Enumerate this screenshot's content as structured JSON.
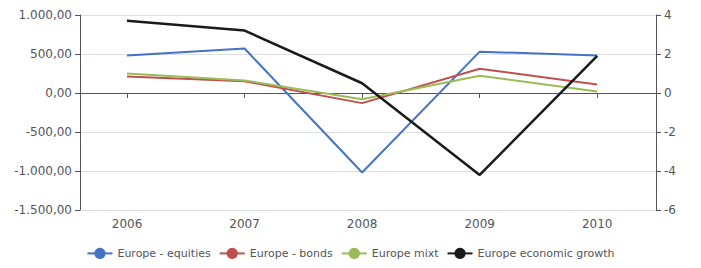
{
  "chart_data": {
    "type": "line",
    "x": [
      2006,
      2007,
      2008,
      2009,
      2010
    ],
    "xlim": [
      2005.6,
      2010.5
    ],
    "xticks": [
      2006,
      2007,
      2008,
      2009,
      2010
    ],
    "ylim": [
      -1500,
      1000
    ],
    "yticks": [
      {
        "value": -1500,
        "label": "-1.500,00"
      },
      {
        "value": -1000,
        "label": "-1.000,00"
      },
      {
        "value": -500,
        "label": "-500,00"
      },
      {
        "value": 0,
        "label": "0,00"
      },
      {
        "value": 500,
        "label": "500,00"
      },
      {
        "value": 1000,
        "label": "1.000,00"
      }
    ],
    "y2lim": [
      -6,
      4
    ],
    "y2ticks": [
      -6,
      -4,
      -2,
      0,
      2,
      4
    ],
    "series": [
      {
        "name": "Europe - equities",
        "color": "#4472C4",
        "values": [
          480,
          570,
          -1020,
          530,
          480
        ]
      },
      {
        "name": "Europe - bonds",
        "color": "#C0504D",
        "values": [
          210,
          150,
          -130,
          310,
          110
        ]
      },
      {
        "name": "Europe mixt",
        "color": "#9BBB59",
        "values": [
          250,
          160,
          -80,
          220,
          20
        ]
      },
      {
        "name": "Europe economic growth",
        "color": "#1a1a1a",
        "values": [
          3.7,
          3.2,
          0.5,
          -4.2,
          1.9
        ],
        "axis": "y2"
      }
    ],
    "grid": true,
    "legend": "bottom"
  }
}
